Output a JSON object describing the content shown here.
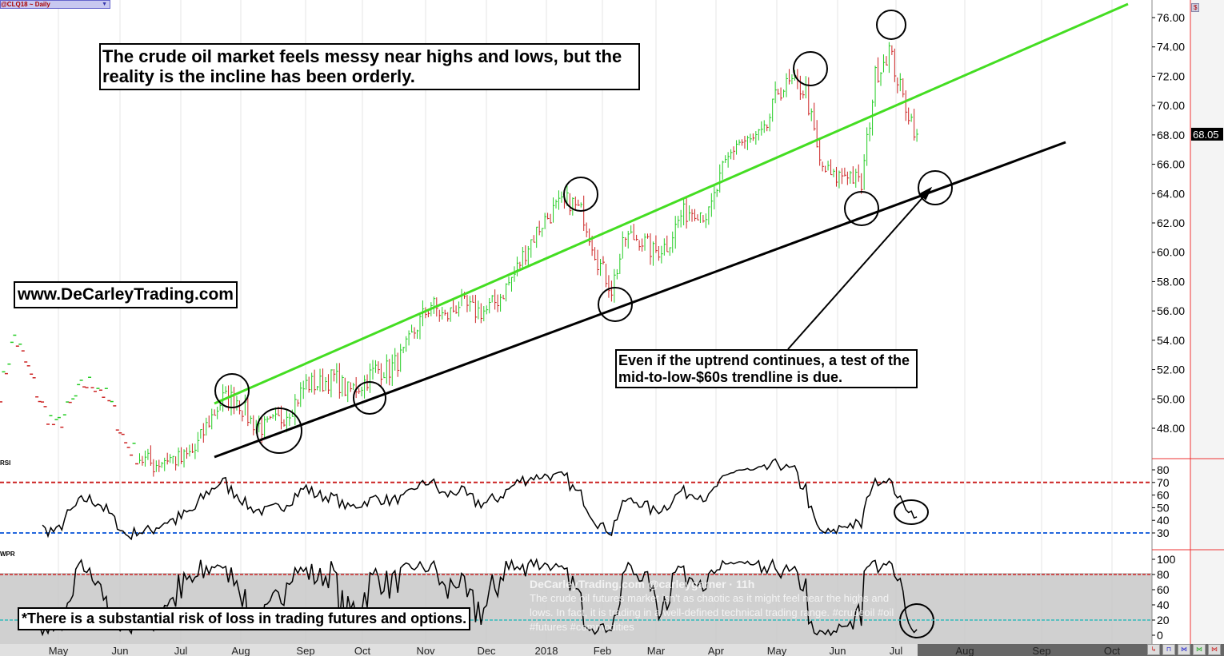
{
  "header": {
    "symbol_selector": "@CLQ18 ~ Daily",
    "currency_badge": "$"
  },
  "annotations": {
    "headline": "The crude oil market feels messy near highs and lows, but the reality is the incline has been orderly.",
    "website": "www.DeCarleyTrading.com",
    "callout": "Even if the uptrend continues, a test of the mid-to-low-$60s trendline is due.",
    "disclaimer": "*There is a substantial risk of loss in trading futures and options."
  },
  "tweet": {
    "author": "DeCarleyTrading.com @carleygarner · 11h",
    "text": "The crude oil futures market isn't as chaotic as it might feel near the highs and lows. In fact, it is trading in a well-defined technical trading range. #crudeoil #oil #futures #commodities"
  },
  "panels": {
    "rsi_label": "RSI",
    "wpr_label": "WPR"
  },
  "colors": {
    "up": "#22cc22",
    "down": "#cc2222",
    "upper_trend": "#44dd22",
    "lower_trend": "#000000",
    "overbought": "#cc2222",
    "oversold": "#2266dd",
    "wpr_low": "#33bbbb"
  },
  "chart_data": {
    "type": "ohlc",
    "title": "@CLQ18 ~ Daily",
    "interval": "weekly approximate closes",
    "start_date": "2017-04-24",
    "weekly_close": [
      50.5,
      54.3,
      52,
      49.5,
      48,
      49.5,
      51,
      51,
      49.5,
      47,
      46,
      45.5,
      46,
      45.8,
      46.5,
      48.5,
      50,
      50,
      48.5,
      48,
      48.5,
      49.5,
      51,
      51,
      51.5,
      50.5,
      51,
      52,
      52,
      53,
      55,
      56.5,
      55.5,
      56.5,
      56,
      56,
      57,
      58.5,
      60.5,
      62,
      63,
      63.5,
      62.5,
      59.5,
      57.5,
      61,
      61,
      60,
      60.5,
      62.5,
      63,
      62.5,
      65.5,
      67.5,
      67.5,
      68,
      71,
      71.5,
      71,
      66,
      65,
      65.5,
      64.5,
      72,
      73.8,
      70.5,
      68.05
    ],
    "last_price": "68.05",
    "y_ticks": [
      "76.00",
      "74.00",
      "72.00",
      "70.00",
      "68.00",
      "66.00",
      "64.00",
      "62.00",
      "60.00",
      "58.00",
      "56.00",
      "54.00",
      "52.00",
      "50.00",
      "48.00"
    ],
    "ylim": [
      46,
      77
    ],
    "x_ticks": [
      "May",
      "Jun",
      "Jul",
      "Aug",
      "Sep",
      "Oct",
      "Nov",
      "Dec",
      "2018",
      "Feb",
      "Mar",
      "Apr",
      "May",
      "Jun",
      "Jul",
      "Aug",
      "Sep",
      "Oct"
    ],
    "rsi": {
      "period": 14,
      "ticks": [
        "80",
        "70",
        "60",
        "50",
        "40",
        "30"
      ],
      "overbought": 70,
      "oversold": 30
    },
    "wpr": {
      "period": 14,
      "ticks": [
        "100",
        "80",
        "60",
        "40",
        "20",
        "0"
      ],
      "upper": 80,
      "lower": 20
    }
  }
}
